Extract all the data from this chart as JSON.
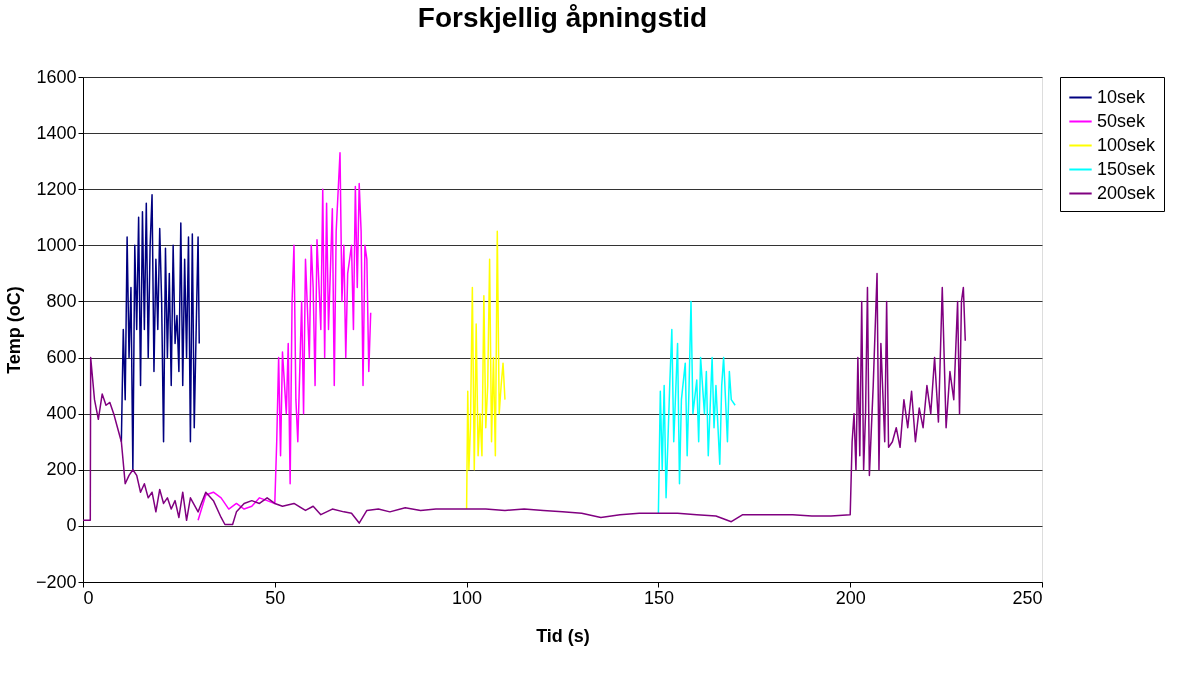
{
  "chart_data": {
    "type": "line",
    "title": "Forskjellig åpningstid",
    "xlabel": "Tid (s)",
    "ylabel": "Temp (oC)",
    "xlim": [
      0,
      250
    ],
    "xticks": [
      0,
      50,
      100,
      150,
      200,
      250
    ],
    "ylim": [
      -200,
      1600
    ],
    "yticks": [
      -200,
      0,
      200,
      400,
      600,
      800,
      1000,
      1200,
      1400,
      1600
    ],
    "grid": "y",
    "legend": "right",
    "marker": "none",
    "line_style": "solid",
    "series": [
      {
        "name": "10sek",
        "color": "#000080",
        "x": [
          10,
          10.5,
          11,
          11.5,
          12,
          12.5,
          13,
          13.5,
          14,
          14.5,
          15,
          15.5,
          16,
          16.5,
          17,
          17.5,
          18,
          18.5,
          19,
          19.5,
          20,
          20.5,
          21,
          21.5,
          22,
          22.5,
          23,
          23.5,
          24,
          24.5,
          25,
          25.5,
          26,
          26.5,
          27,
          27.5,
          28,
          28.5,
          29,
          29.5,
          30,
          30.3
        ],
        "values": [
          300,
          700,
          450,
          1030,
          600,
          850,
          200,
          1000,
          700,
          1100,
          500,
          1120,
          700,
          1150,
          600,
          1000,
          1180,
          550,
          950,
          700,
          1060,
          800,
          300,
          990,
          600,
          900,
          500,
          1000,
          650,
          750,
          550,
          1080,
          500,
          950,
          600,
          1030,
          300,
          1040,
          350,
          700,
          1030,
          650
        ]
      },
      {
        "name": "50sek",
        "color": "#ff00ff",
        "x": [
          30,
          32,
          34,
          36,
          38,
          40,
          42,
          44,
          46,
          48,
          50,
          50.5,
          51,
          51.5,
          52,
          53,
          53.5,
          54,
          54.5,
          55,
          55.5,
          56,
          57,
          57.5,
          58,
          59,
          59.5,
          60,
          60.5,
          61,
          62,
          62.5,
          63,
          63.5,
          64,
          65,
          65.5,
          66,
          67,
          67.5,
          68,
          68.5,
          69,
          70,
          70.5,
          71,
          71.5,
          72,
          72.5,
          73,
          73.5,
          74,
          74.5,
          75
        ],
        "values": [
          20,
          110,
          120,
          100,
          60,
          80,
          60,
          70,
          100,
          90,
          80,
          300,
          600,
          250,
          620,
          400,
          650,
          150,
          800,
          1000,
          450,
          300,
          800,
          400,
          950,
          600,
          1000,
          850,
          500,
          1020,
          700,
          1200,
          600,
          1150,
          700,
          1130,
          500,
          1050,
          1330,
          800,
          1000,
          600,
          900,
          1000,
          700,
          1210,
          850,
          1220,
          1050,
          500,
          1000,
          950,
          550,
          760
        ]
      },
      {
        "name": "100sek",
        "color": "#ffff00",
        "x": [
          100,
          100.3,
          100.6,
          101,
          101.5,
          102,
          102.5,
          103,
          103.5,
          104,
          104.5,
          105,
          105.5,
          106,
          106.5,
          107,
          107.5,
          108,
          108.5,
          109,
          109.5,
          110
        ],
        "values": [
          60,
          480,
          200,
          350,
          850,
          200,
          720,
          250,
          400,
          250,
          820,
          350,
          500,
          950,
          300,
          600,
          250,
          1050,
          400,
          500,
          580,
          450
        ]
      },
      {
        "name": "150sek",
        "color": "#00ffff",
        "x": [
          150,
          150.5,
          151,
          151.5,
          152,
          153,
          153.5,
          154,
          155,
          155.5,
          156,
          157,
          157.5,
          158,
          158.5,
          159,
          160,
          160.5,
          161,
          162,
          162.5,
          163,
          164,
          164.5,
          165,
          166,
          166.5,
          167,
          168,
          168.5,
          169,
          170
        ],
        "values": [
          45,
          480,
          200,
          500,
          100,
          520,
          700,
          300,
          650,
          150,
          450,
          580,
          250,
          500,
          800,
          400,
          520,
          300,
          600,
          400,
          550,
          250,
          600,
          350,
          500,
          220,
          500,
          600,
          300,
          550,
          450,
          430
        ]
      },
      {
        "name": "200sek",
        "color": "#800080",
        "x": [
          0,
          1.9,
          2,
          3,
          4,
          5,
          6,
          7,
          8,
          9,
          10,
          11,
          12,
          13,
          14,
          15,
          16,
          17,
          18,
          19,
          20,
          21,
          22,
          23,
          24,
          25,
          26,
          27,
          28,
          30,
          32,
          34,
          36,
          37,
          39,
          40,
          42,
          44,
          46,
          48,
          50,
          52,
          55,
          58,
          60,
          62,
          65,
          68,
          70,
          72,
          74,
          77,
          80,
          84,
          88,
          92,
          96,
          100,
          105,
          110,
          115,
          120,
          125,
          130,
          135,
          140,
          145,
          150,
          155,
          160,
          165,
          169,
          172,
          176,
          180,
          185,
          190,
          195,
          200,
          200.5,
          201,
          201.5,
          202,
          202.5,
          203,
          203.5,
          204,
          204.5,
          205,
          206,
          207,
          207.5,
          208,
          209,
          209.5,
          210,
          211,
          212,
          213,
          214,
          215,
          216,
          217,
          218,
          219,
          220,
          221,
          222,
          223,
          224,
          225,
          226,
          227,
          228,
          228.5,
          229,
          229.5,
          230
        ],
        "values": [
          20,
          20,
          600,
          450,
          380,
          470,
          430,
          440,
          400,
          350,
          300,
          150,
          180,
          200,
          180,
          120,
          150,
          100,
          120,
          50,
          130,
          80,
          100,
          60,
          90,
          30,
          120,
          20,
          100,
          50,
          120,
          90,
          30,
          5,
          5,
          50,
          80,
          90,
          80,
          100,
          80,
          70,
          80,
          55,
          70,
          40,
          60,
          50,
          45,
          10,
          55,
          60,
          50,
          65,
          55,
          60,
          60,
          60,
          60,
          55,
          60,
          55,
          50,
          45,
          30,
          40,
          45,
          45,
          45,
          40,
          35,
          15,
          40,
          40,
          40,
          40,
          35,
          35,
          40,
          300,
          400,
          200,
          600,
          250,
          800,
          200,
          400,
          850,
          180,
          500,
          900,
          200,
          650,
          300,
          800,
          280,
          300,
          350,
          280,
          450,
          350,
          480,
          300,
          420,
          350,
          500,
          400,
          600,
          370,
          850,
          350,
          550,
          450,
          800,
          400,
          800,
          850,
          660
        ]
      }
    ]
  }
}
